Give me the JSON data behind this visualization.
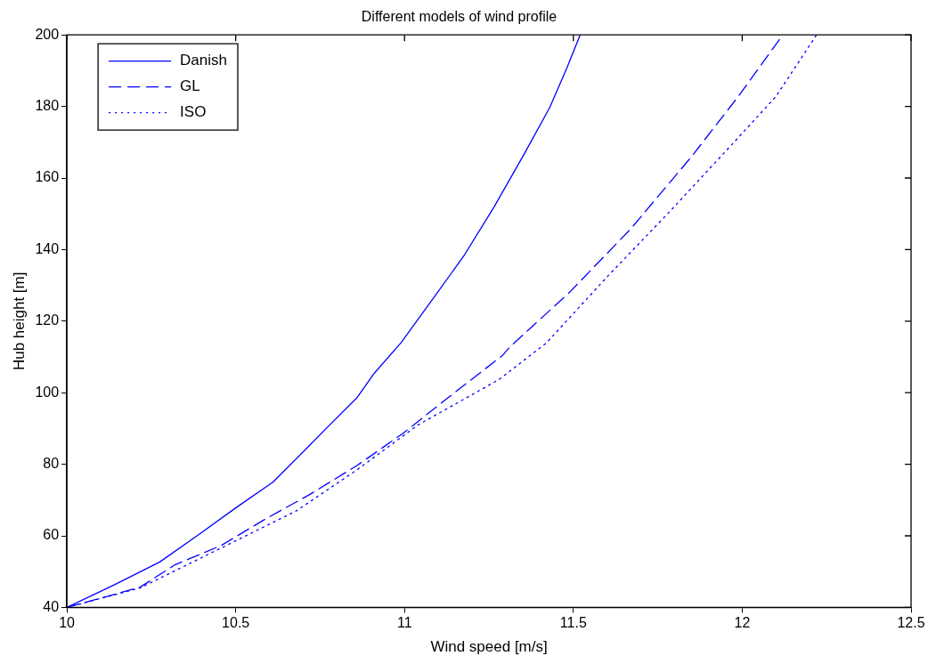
{
  "chart_data": {
    "type": "line",
    "title": "Different models of wind profile",
    "xlabel": "Wind speed [m/s]",
    "ylabel": "Hub height [m]",
    "xlim": [
      10,
      12.5
    ],
    "xticks": [
      10,
      10.5,
      11,
      11.5,
      12,
      12.5
    ],
    "ylim": [
      40,
      200
    ],
    "yticks": [
      40,
      60,
      80,
      100,
      120,
      140,
      160,
      180,
      200
    ],
    "grid": false,
    "legend": "top left",
    "marker": "none",
    "series": [
      {
        "name": "Danish",
        "color": "#0000ff",
        "line_style": "solid",
        "x": [
          10,
          10.14,
          10.275,
          10.39,
          10.5,
          10.61,
          10.7,
          10.77,
          10.86,
          10.91,
          10.99,
          11.086,
          11.176,
          11.265,
          11.356,
          11.43,
          11.48,
          11.52
        ],
        "values": [
          40,
          46.3,
          52.7,
          60.3,
          67.8,
          75,
          83.5,
          90.2,
          98.7,
          105.4,
          114,
          126.5,
          138.3,
          151.9,
          167,
          179.7,
          190.6,
          200
        ]
      },
      {
        "name": "GL",
        "color": "#0000ff",
        "line_style": "dashed",
        "x": [
          10,
          10.216,
          10.32,
          10.455,
          10.59,
          10.72,
          10.86,
          10.995,
          11.13,
          11.29,
          11.31,
          11.49,
          11.67,
          11.85,
          11.99,
          12.12
        ],
        "values": [
          40,
          45.6,
          51.9,
          57.2,
          64.8,
          71.6,
          79.7,
          88.6,
          98.7,
          110.4,
          112.6,
          128.2,
          145.8,
          166,
          183,
          200
        ]
      },
      {
        "name": "ISO",
        "color": "#0000ff",
        "line_style": "dotted",
        "x": [
          10,
          10.216,
          10.5,
          10.68,
          10.86,
          11.04,
          11.28,
          11.42,
          11.6,
          11.78,
          11.96,
          12.1,
          12.22
        ],
        "values": [
          40,
          45.4,
          58.6,
          67,
          78.5,
          91,
          103.7,
          113.9,
          132.4,
          150.1,
          168.4,
          182.8,
          200
        ]
      }
    ]
  }
}
